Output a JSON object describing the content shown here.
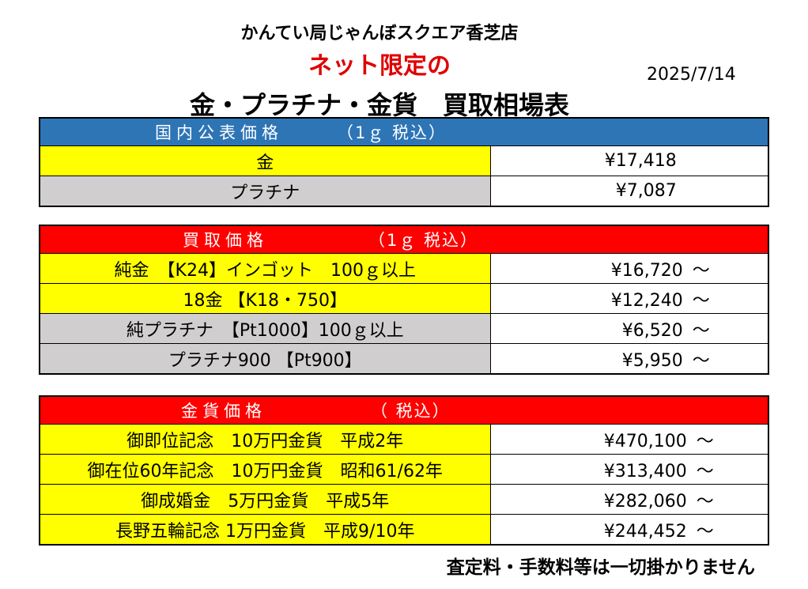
{
  "header": {
    "store": "かんてい局じゃんぼスクエア香芝店",
    "subtitle": "ネット限定の",
    "date": "2025/7/14",
    "title": "金・プラチナ・金貨　買取相場表"
  },
  "public_prices": {
    "header_left": "国内公表価格",
    "header_right": "（1ｇ 税込）",
    "rows": [
      {
        "label": "金",
        "price": "¥17,418",
        "color": "yellow"
      },
      {
        "label": "プラチナ",
        "price": "¥7,087",
        "color": "gray"
      }
    ]
  },
  "buy_prices": {
    "header_left": "買取価格",
    "header_right": "（1ｇ 税込）",
    "rows": [
      {
        "label": "純金　【K24】インゴット　100ｇ以上",
        "price": "¥16,720",
        "tilde": "～",
        "color": "yellow"
      },
      {
        "label": "18金 【K18・750】",
        "price": "¥12,240",
        "tilde": "～",
        "color": "yellow"
      },
      {
        "label": "純プラチナ　【Pt1000】100ｇ以上",
        "price": "¥6,520",
        "tilde": "～",
        "color": "gray"
      },
      {
        "label": "プラチナ900 【Pt900】",
        "price": "¥5,950",
        "tilde": "～",
        "color": "gray"
      }
    ]
  },
  "coin_prices": {
    "header_left": "金貨価格",
    "header_right": "（ 税込）",
    "rows": [
      {
        "label": "御即位記念　10万円金貨　平成2年",
        "price": "¥470,100",
        "tilde": "～",
        "color": "yellow"
      },
      {
        "label": "御在位60年記念　10万円金貨　昭和61/62年",
        "price": "¥313,400",
        "tilde": "～",
        "color": "yellow"
      },
      {
        "label": "御成婚金　5万円金貨　平成5年",
        "price": "¥282,060",
        "tilde": "～",
        "color": "yellow"
      },
      {
        "label": "長野五輪記念 1万円金貨　平成9/10年",
        "price": "¥244,452",
        "tilde": "～",
        "color": "yellow"
      }
    ]
  },
  "footer": {
    "note": "査定料・手数料等は一切掛かりません"
  },
  "colors": {
    "blue_header": "#2e75b6",
    "red_header": "#ff0000",
    "yellow_cell": "#ffff00",
    "gray_cell": "#d0cece",
    "subtitle_red": "#e00000"
  }
}
